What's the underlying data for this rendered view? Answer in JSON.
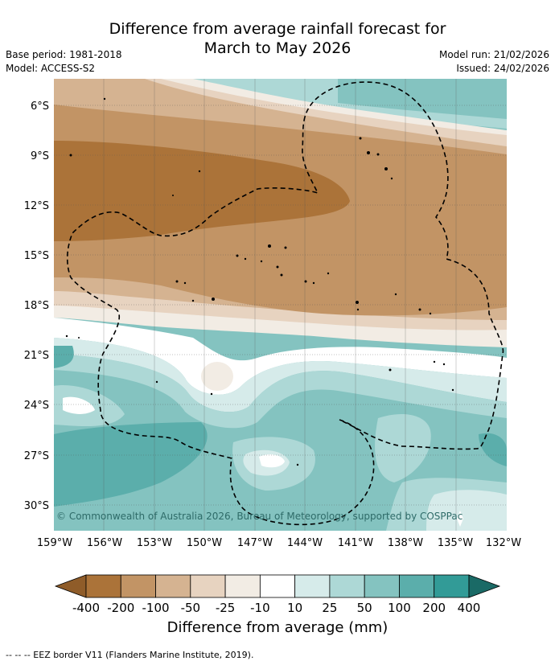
{
  "title": {
    "line1": "Difference from average rainfall forecast for",
    "line2": "March to May 2026"
  },
  "meta": {
    "base_period": "Base period: 1981-2018",
    "model": "Model: ACCESS-S2",
    "model_run": "Model run: 21/02/2026",
    "issued": "Issued: 24/02/2026"
  },
  "map": {
    "lat_labels": [
      "6°S",
      "9°S",
      "12°S",
      "15°S",
      "18°S",
      "21°S",
      "24°S",
      "27°S",
      "30°S"
    ],
    "lon_labels": [
      "159°W",
      "156°W",
      "153°W",
      "150°W",
      "147°W",
      "144°W",
      "141°W",
      "138°W",
      "135°W",
      "132°W"
    ],
    "copyright": "© Commonwealth of Australia 2026, Bureau of Meteorology, supported by COSPPac"
  },
  "colorbar": {
    "title": "Difference from average (mm)",
    "ticks": [
      "-400",
      "-200",
      "-100",
      "-50",
      "-25",
      "-10",
      "10",
      "25",
      "50",
      "100",
      "200",
      "400"
    ],
    "colors": [
      "#ab7339",
      "#c29465",
      "#d5b391",
      "#e7d3c0",
      "#f2ece4",
      "#ffffff",
      "#d6ebea",
      "#add8d6",
      "#84c3c0",
      "#5baeab",
      "#329b97",
      "#1f7e7a"
    ],
    "under_color": "#8f5c29",
    "over_color": "#1a6a66"
  },
  "footer": "-- -- -- EEZ border V11 (Flanders Marine Institute, 2019)."
}
